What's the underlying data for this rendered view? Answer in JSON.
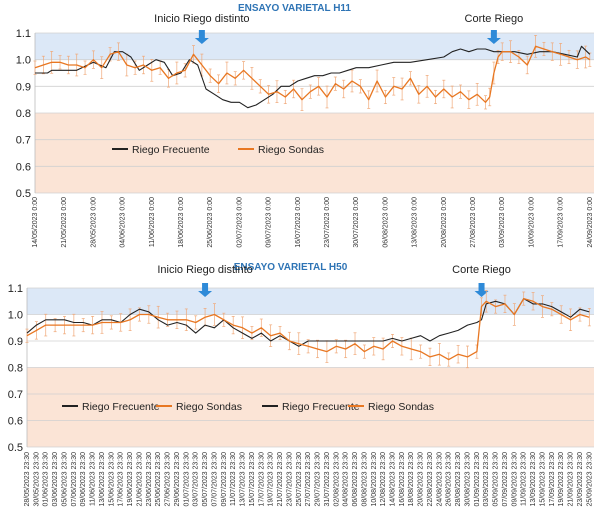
{
  "chart_data": [
    {
      "type": "line",
      "title": "ENSAYO VARIETAL H11",
      "ylim": [
        0.5,
        1.1
      ],
      "yticks": [
        "0.5",
        "0.6",
        "0.7",
        "0.8",
        "0.9",
        "1.0",
        "1.1"
      ],
      "bands": [
        {
          "from": 1.0,
          "to": 1.1,
          "color": "#dce8f7"
        },
        {
          "from": 0.8,
          "to": 1.0,
          "color": "#ffffff"
        },
        {
          "from": 0.5,
          "to": 0.8,
          "color": "#fbe4d6"
        }
      ],
      "x_tick_labels": [
        "14/05/2023 0:00",
        "21/05/2023 0:00",
        "28/05/2023 0:00",
        "04/06/2023 0:00",
        "11/06/2023 0:00",
        "18/06/2023 0:00",
        "25/06/2023 0:00",
        "02/07/2023 0:00",
        "09/07/2023 0:00",
        "16/07/2023 0:00",
        "23/07/2023 0:00",
        "30/07/2023 0:00",
        "06/08/2023 0:00",
        "13/08/2023 0:00",
        "20/08/2023 0:00",
        "27/08/2023 0:00",
        "03/09/2023 0:00",
        "10/09/2023 0:00",
        "17/09/2023 0:00",
        "24/09/2023 0:00"
      ],
      "x_tick_positions": [
        0,
        7,
        14,
        21,
        28,
        35,
        42,
        49,
        56,
        63,
        70,
        77,
        84,
        91,
        98,
        105,
        112,
        119,
        126,
        133
      ],
      "x_range": [
        0,
        134
      ],
      "annotations": [
        {
          "text": "Inicio Riego distinto",
          "x": 40
        },
        {
          "text": "Corte Riego",
          "x": 110
        }
      ],
      "legend": [
        "Riego Frecuente",
        "Riego Sondas"
      ],
      "series": [
        {
          "name": "Riego Frecuente",
          "color": "#222222",
          "x": [
            0,
            3,
            4,
            7,
            10,
            14,
            17,
            19,
            21,
            23,
            25,
            27,
            29,
            31,
            33,
            35,
            37,
            39,
            41,
            43,
            45,
            47,
            49,
            51,
            53,
            55,
            57,
            59,
            61,
            63,
            65,
            67,
            69,
            71,
            73,
            75,
            77,
            80,
            83,
            86,
            90,
            94,
            98,
            100,
            102,
            104,
            106,
            108,
            110,
            112,
            113,
            115,
            118,
            121,
            124,
            127,
            130,
            131,
            133
          ],
          "y": [
            0.95,
            0.95,
            0.96,
            0.96,
            0.96,
            0.99,
            0.97,
            1.03,
            1.03,
            1.01,
            0.96,
            0.98,
            1.0,
            0.99,
            0.94,
            0.95,
            1.0,
            0.98,
            0.89,
            0.87,
            0.85,
            0.84,
            0.84,
            0.82,
            0.83,
            0.85,
            0.87,
            0.9,
            0.9,
            0.92,
            0.93,
            0.94,
            0.94,
            0.95,
            0.95,
            0.96,
            0.97,
            0.97,
            0.98,
            0.99,
            0.99,
            1.0,
            1.01,
            1.03,
            1.04,
            1.03,
            1.04,
            1.04,
            1.03,
            1.03,
            1.03,
            1.03,
            1.02,
            1.03,
            1.03,
            1.02,
            1.01,
            1.05,
            1.02
          ]
        },
        {
          "name": "Riego Sondas",
          "color": "#e87722",
          "x": [
            0,
            2,
            4,
            6,
            8,
            10,
            12,
            14,
            16,
            18,
            20,
            22,
            24,
            26,
            28,
            30,
            32,
            34,
            36,
            38,
            40,
            42,
            44,
            46,
            48,
            50,
            52,
            54,
            56,
            58,
            60,
            62,
            64,
            66,
            68,
            70,
            72,
            74,
            76,
            78,
            80,
            82,
            84,
            86,
            88,
            90,
            92,
            94,
            96,
            98,
            100,
            102,
            104,
            106,
            108,
            109,
            110,
            111,
            112,
            114,
            116,
            118,
            120,
            122,
            124,
            126,
            128,
            130,
            132,
            133
          ],
          "y": [
            0.97,
            0.98,
            0.99,
            0.99,
            0.98,
            0.98,
            0.97,
            1.0,
            0.97,
            1.02,
            1.03,
            0.98,
            0.97,
            0.98,
            0.96,
            0.97,
            0.93,
            0.95,
            0.96,
            1.02,
            0.98,
            0.94,
            0.91,
            0.95,
            0.93,
            0.96,
            0.93,
            0.9,
            0.87,
            0.88,
            0.86,
            0.89,
            0.85,
            0.88,
            0.9,
            0.86,
            0.91,
            0.89,
            0.92,
            0.9,
            0.85,
            0.92,
            0.86,
            0.9,
            0.89,
            0.93,
            0.87,
            0.9,
            0.86,
            0.89,
            0.86,
            0.88,
            0.85,
            0.87,
            0.84,
            0.86,
            0.95,
            1.01,
            1.03,
            1.03,
            1.01,
            0.98,
            1.05,
            1.04,
            1.03,
            1.02,
            1.01,
            1.0,
            1.01,
            1.0
          ]
        }
      ]
    },
    {
      "type": "line",
      "title": "ENSAYO VARIETAL H50",
      "ylim": [
        0.5,
        1.1
      ],
      "yticks": [
        "0.5",
        "0.6",
        "0.7",
        "0.8",
        "0.9",
        "1.0",
        "1.1"
      ],
      "bands": [
        {
          "from": 1.0,
          "to": 1.1,
          "color": "#dce8f7"
        },
        {
          "from": 0.8,
          "to": 1.0,
          "color": "#ffffff"
        },
        {
          "from": 0.5,
          "to": 0.8,
          "color": "#fbe4d6"
        }
      ],
      "x_tick_labels": [
        "28/05/2023 23:30",
        "30/05/2023 23:30",
        "01/06/2023 23:30",
        "03/06/2023 23:30",
        "05/06/2023 23:30",
        "07/06/2023 23:30",
        "09/06/2023 23:30",
        "11/06/2023 23:30",
        "13/06/2023 23:30",
        "15/06/2023 23:30",
        "17/06/2023 23:30",
        "19/06/2023 23:30",
        "21/06/2023 23:30",
        "23/06/2023 23:30",
        "25/06/2023 23:30",
        "27/06/2023 23:30",
        "29/06/2023 23:30",
        "01/07/2023 23:30",
        "03/07/2023 23:30",
        "05/07/2023 23:30",
        "07/07/2023 23:30",
        "09/07/2023 23:30",
        "11/07/2023 23:30",
        "13/07/2023 23:30",
        "15/07/2023 23:30",
        "17/07/2023 23:30",
        "19/07/2023 23:30",
        "21/07/2023 23:30",
        "23/07/2023 23:30",
        "25/07/2023 23:30",
        "27/07/2023 23:30",
        "29/07/2023 23:30",
        "31/07/2023 23:30",
        "02/08/2023 23:30",
        "04/08/2023 23:30",
        "06/08/2023 23:30",
        "08/08/2023 23:30",
        "10/08/2023 23:30",
        "12/08/2023 23:30",
        "14/08/2023 23:30",
        "16/08/2023 23:30",
        "18/08/2023 23:30",
        "20/08/2023 23:30",
        "22/08/2023 23:30",
        "24/08/2023 23:30",
        "26/08/2023 23:30",
        "28/08/2023 23:30",
        "30/08/2023 23:30",
        "01/09/2023 23:30",
        "03/09/2023 23:30",
        "05/09/2023 23:30",
        "07/09/2023 23:30",
        "09/09/2023 23:30",
        "11/09/2023 23:30",
        "13/09/2023 23:30",
        "15/09/2023 23:30",
        "17/09/2023 23:30",
        "19/09/2023 23:30",
        "21/09/2023 23:30",
        "23/09/2023 23:30",
        "25/09/2023 23:30"
      ],
      "x_tick_positions": [
        0,
        2,
        4,
        6,
        8,
        10,
        12,
        14,
        16,
        18,
        20,
        22,
        24,
        26,
        28,
        30,
        32,
        34,
        36,
        38,
        40,
        42,
        44,
        46,
        48,
        50,
        52,
        54,
        56,
        58,
        60,
        62,
        64,
        66,
        68,
        70,
        72,
        74,
        76,
        78,
        80,
        82,
        84,
        86,
        88,
        90,
        92,
        94,
        96,
        98,
        100,
        102,
        104,
        106,
        108,
        110,
        112,
        114,
        116,
        118,
        120
      ],
      "x_range": [
        0,
        121
      ],
      "annotations": [
        {
          "text": "Inicio Riego distinto",
          "x": 38
        },
        {
          "text": "Corte Riego",
          "x": 97
        }
      ],
      "legend": [
        "Riego Frecuente",
        "Riego Sondas",
        "Riego Frecuente",
        "Riego Sondas"
      ],
      "series": [
        {
          "name": "Riego Frecuente",
          "color": "#222222",
          "x": [
            0,
            2,
            4,
            6,
            8,
            10,
            12,
            14,
            16,
            18,
            20,
            22,
            24,
            26,
            28,
            30,
            32,
            34,
            36,
            38,
            40,
            42,
            44,
            46,
            48,
            50,
            52,
            54,
            56,
            58,
            60,
            62,
            64,
            66,
            68,
            70,
            72,
            74,
            76,
            78,
            80,
            82,
            84,
            86,
            88,
            90,
            92,
            94,
            96,
            97,
            98,
            100,
            102,
            104,
            106,
            108,
            110,
            112,
            114,
            116,
            118,
            120
          ],
          "y": [
            0.93,
            0.96,
            0.98,
            0.98,
            0.98,
            0.97,
            0.97,
            0.96,
            0.98,
            0.98,
            0.97,
            1.0,
            1.02,
            1.01,
            0.98,
            0.96,
            0.97,
            0.96,
            0.93,
            0.96,
            0.95,
            0.98,
            0.95,
            0.93,
            0.91,
            0.93,
            0.9,
            0.92,
            0.9,
            0.88,
            0.9,
            0.9,
            0.9,
            0.9,
            0.9,
            0.9,
            0.9,
            0.9,
            0.9,
            0.91,
            0.9,
            0.91,
            0.92,
            0.9,
            0.92,
            0.93,
            0.94,
            0.96,
            0.97,
            0.98,
            1.04,
            1.05,
            1.04,
            1.0,
            1.06,
            1.04,
            1.04,
            1.03,
            1.01,
            0.99,
            1.02,
            1.01
          ]
        },
        {
          "name": "Riego Sondas",
          "color": "#e87722",
          "x": [
            0,
            2,
            4,
            6,
            8,
            10,
            12,
            14,
            16,
            18,
            20,
            22,
            24,
            26,
            28,
            30,
            32,
            34,
            36,
            38,
            40,
            42,
            44,
            46,
            48,
            50,
            52,
            54,
            56,
            58,
            60,
            62,
            64,
            66,
            68,
            70,
            72,
            74,
            76,
            78,
            80,
            82,
            84,
            86,
            88,
            90,
            92,
            94,
            96,
            97,
            98,
            100,
            102,
            104,
            106,
            108,
            110,
            112,
            114,
            116,
            118,
            120
          ],
          "y": [
            0.92,
            0.94,
            0.96,
            0.96,
            0.96,
            0.96,
            0.96,
            0.96,
            0.97,
            0.97,
            0.97,
            0.98,
            1.0,
            1.0,
            0.99,
            0.98,
            0.98,
            0.98,
            0.97,
            0.99,
            1.0,
            0.98,
            0.96,
            0.95,
            0.93,
            0.95,
            0.92,
            0.93,
            0.9,
            0.89,
            0.88,
            0.87,
            0.86,
            0.88,
            0.87,
            0.89,
            0.86,
            0.88,
            0.87,
            0.9,
            0.88,
            0.87,
            0.86,
            0.84,
            0.85,
            0.83,
            0.85,
            0.84,
            0.86,
            1.03,
            1.05,
            1.03,
            1.04,
            1.0,
            1.06,
            1.05,
            1.03,
            1.02,
            1.0,
            0.98,
            1.0,
            0.99
          ]
        }
      ]
    }
  ]
}
